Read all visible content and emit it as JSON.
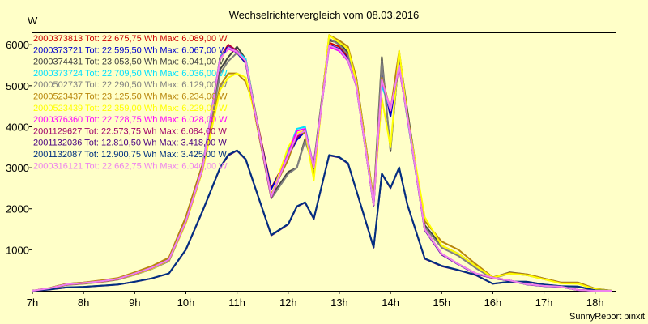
{
  "chart_data": {
    "type": "line",
    "title": "Wechselrichtervergleich vom 08.03.2016",
    "ylabel": "W",
    "xlabel": "",
    "xlim": [
      7,
      18.4
    ],
    "ylim": [
      0,
      6300
    ],
    "grid": false,
    "footer": "SunnyReport pinxit",
    "x_ticks": [
      {
        "value": 7,
        "label": "7h"
      },
      {
        "value": 8,
        "label": "8h"
      },
      {
        "value": 9,
        "label": "9h"
      },
      {
        "value": 10,
        "label": "10h"
      },
      {
        "value": 11,
        "label": "11h"
      },
      {
        "value": 12,
        "label": "12h"
      },
      {
        "value": 13,
        "label": "13h"
      },
      {
        "value": 14,
        "label": "14h"
      },
      {
        "value": 15,
        "label": "15h"
      },
      {
        "value": 16,
        "label": "16h"
      },
      {
        "value": 17,
        "label": "17h"
      },
      {
        "value": 18,
        "label": "18h"
      }
    ],
    "y_ticks": [
      {
        "value": 1000,
        "label": "1000"
      },
      {
        "value": 2000,
        "label": "2000"
      },
      {
        "value": 3000,
        "label": "3000"
      },
      {
        "value": 4000,
        "label": "4000"
      },
      {
        "value": 5000,
        "label": "5000"
      },
      {
        "value": 6000,
        "label": "6000"
      }
    ],
    "x": [
      7.0,
      7.33,
      7.67,
      8.0,
      8.33,
      8.67,
      9.0,
      9.33,
      9.67,
      10.0,
      10.33,
      10.67,
      10.83,
      11.0,
      11.17,
      11.33,
      11.67,
      12.0,
      12.17,
      12.33,
      12.5,
      12.8,
      13.0,
      13.17,
      13.33,
      13.67,
      13.83,
      14.0,
      14.17,
      14.33,
      14.67,
      15.0,
      15.33,
      15.67,
      16.0,
      16.33,
      16.67,
      17.0,
      17.33,
      17.67,
      18.0,
      18.33
    ],
    "series": [
      {
        "name": "2000373813",
        "label": "2000373813 Tot: 22.675,75 Wh Max: 6.089,00 W",
        "color": "#cc0000",
        "values": [
          0,
          60,
          160,
          190,
          230,
          290,
          420,
          560,
          760,
          1700,
          3000,
          5700,
          6000,
          5850,
          5600,
          4500,
          2500,
          3300,
          3700,
          3900,
          3000,
          6050,
          5950,
          5700,
          5100,
          2100,
          5300,
          4300,
          5600,
          4300,
          1500,
          900,
          650,
          420,
          320,
          250,
          160,
          120,
          100,
          20,
          0,
          0
        ]
      },
      {
        "name": "2000373721",
        "label": "2000373721 Tot: 22.595,50 Wh Max: 6.067,00 W",
        "color": "#0000cc",
        "values": [
          0,
          55,
          150,
          185,
          225,
          280,
          410,
          550,
          750,
          1680,
          2980,
          5650,
          5950,
          5800,
          5550,
          4450,
          2480,
          3280,
          3680,
          3880,
          2980,
          6000,
          5900,
          5650,
          5050,
          2080,
          5250,
          4250,
          5550,
          4250,
          1480,
          880,
          640,
          410,
          310,
          245,
          155,
          115,
          95,
          18,
          0,
          0
        ]
      },
      {
        "name": "2000374431",
        "label": "2000374431 Tot: 23.053,50 Wh Max: 6.041,00 W",
        "color": "#404040",
        "values": [
          0,
          65,
          170,
          200,
          245,
          300,
          440,
          590,
          800,
          1800,
          3100,
          5400,
          5700,
          5950,
          5650,
          4550,
          2300,
          2900,
          3000,
          3700,
          3100,
          6100,
          6050,
          5800,
          5200,
          2200,
          5700,
          3400,
          5800,
          4400,
          1600,
          1100,
          900,
          600,
          320,
          450,
          400,
          300,
          200,
          200,
          50,
          0
        ]
      },
      {
        "name": "2000373724",
        "label": "2000373724 Tot: 22.709,50 Wh Max: 6.036,00 W",
        "color": "#00e0ff",
        "values": [
          0,
          60,
          155,
          190,
          230,
          290,
          420,
          560,
          760,
          1700,
          3050,
          5700,
          5950,
          5850,
          5650,
          4500,
          2300,
          3400,
          3950,
          4000,
          3000,
          5950,
          5850,
          5600,
          5000,
          2100,
          5000,
          4400,
          5500,
          4200,
          1500,
          900,
          650,
          420,
          320,
          250,
          160,
          120,
          100,
          20,
          0,
          0
        ]
      },
      {
        "name": "2000502737",
        "label": "2000502737 Tot: 22.290,50 Wh Max: 6.129,00 W",
        "color": "#808080",
        "values": [
          0,
          50,
          140,
          170,
          210,
          270,
          390,
          530,
          720,
          1650,
          2950,
          5300,
          5600,
          5800,
          5600,
          4400,
          2250,
          2850,
          3000,
          3650,
          3050,
          6150,
          6000,
          5750,
          5100,
          2150,
          5600,
          3450,
          5750,
          4300,
          1550,
          1050,
          850,
          550,
          300,
          420,
          380,
          280,
          190,
          180,
          40,
          0
        ]
      },
      {
        "name": "2000523437",
        "label": "2000523437 Tot: 23.125,50 Wh Max: 6.234,00 W",
        "color": "#b8860b",
        "values": [
          0,
          65,
          170,
          200,
          250,
          310,
          450,
          600,
          810,
          1800,
          3100,
          5000,
          5300,
          5300,
          5100,
          4500,
          2350,
          3200,
          3800,
          3850,
          2800,
          6234,
          6100,
          5950,
          5200,
          2200,
          5200,
          4400,
          5850,
          4300,
          1700,
          1200,
          1000,
          650,
          330,
          440,
          400,
          300,
          200,
          200,
          50,
          0
        ]
      },
      {
        "name": "2000523439",
        "label": "2000523439 Tot: 22.359,00 Wh Max: 6.229,00 W",
        "color": "#ffff00",
        "values": [
          0,
          55,
          150,
          180,
          220,
          280,
          400,
          540,
          740,
          1650,
          2950,
          4900,
          5200,
          5300,
          5200,
          4400,
          2300,
          3500,
          3850,
          3900,
          2700,
          6229,
          6050,
          5900,
          5100,
          2150,
          4700,
          3500,
          5850,
          4250,
          1800,
          1100,
          900,
          600,
          320,
          420,
          380,
          280,
          180,
          170,
          40,
          0
        ]
      },
      {
        "name": "2000376360",
        "label": "2000376360 Tot: 22.728,75 Wh Max: 6.028,00 W",
        "color": "#ff00ff",
        "values": [
          0,
          58,
          155,
          188,
          228,
          288,
          418,
          558,
          758,
          1690,
          3020,
          5680,
          5900,
          5820,
          5600,
          4480,
          2290,
          3350,
          3900,
          3950,
          3020,
          5950,
          5850,
          5600,
          5000,
          2100,
          5100,
          4450,
          5450,
          4250,
          1500,
          900,
          650,
          420,
          320,
          250,
          160,
          120,
          100,
          20,
          0,
          0
        ]
      },
      {
        "name": "2001129627",
        "label": "2001129627 Tot: 22.573,75 Wh Max: 6.084,00 W",
        "color": "#a0006a",
        "values": [
          0,
          57,
          152,
          186,
          226,
          285,
          415,
          555,
          755,
          1690,
          2990,
          5640,
          5980,
          5850,
          5580,
          4460,
          2280,
          3300,
          3750,
          3920,
          3000,
          5980,
          5880,
          5620,
          5020,
          2090,
          5150,
          4380,
          5480,
          4230,
          1490,
          890,
          645,
          415,
          315,
          248,
          158,
          118,
          98,
          19,
          0,
          0
        ]
      },
      {
        "name": "2001132036",
        "label": "2001132036 Tot: 12.810,50 Wh Max: 3.418,00 W",
        "color": "#4b0082",
        "values": [
          0,
          30,
          80,
          95,
          120,
          150,
          220,
          300,
          420,
          1000,
          1950,
          3000,
          3300,
          3418,
          3200,
          2600,
          1350,
          1620,
          2050,
          2150,
          1750,
          3300,
          3250,
          3100,
          2450,
          1050,
          2850,
          2500,
          3000,
          2100,
          780,
          600,
          500,
          380,
          170,
          220,
          220,
          150,
          110,
          100,
          10,
          0
        ]
      },
      {
        "name": "2001132087",
        "label": "2001132087 Tot: 12.900,75 Wh Max: 3.425,00 W",
        "color": "#003080",
        "values": [
          0,
          32,
          82,
          97,
          122,
          152,
          222,
          302,
          425,
          1010,
          1960,
          3010,
          3320,
          3425,
          3210,
          2610,
          1360,
          1630,
          2060,
          2160,
          1760,
          3310,
          3260,
          3110,
          2460,
          1060,
          2860,
          2510,
          3010,
          2110,
          790,
          610,
          505,
          385,
          172,
          222,
          222,
          152,
          112,
          102,
          10,
          0
        ]
      },
      {
        "name": "2000316121",
        "label": "2000316121 Tot: 22.662,75 Wh Max: 6.040,00 W",
        "color": "#ee82ee",
        "values": [
          0,
          60,
          158,
          190,
          230,
          290,
          420,
          560,
          760,
          1700,
          3000,
          5650,
          5920,
          5830,
          5600,
          4500,
          2300,
          3300,
          3800,
          3900,
          3000,
          5980,
          5880,
          5620,
          5020,
          2100,
          5150,
          4400,
          5500,
          4250,
          1500,
          900,
          650,
          420,
          320,
          250,
          160,
          120,
          100,
          20,
          0,
          0
        ]
      }
    ]
  }
}
